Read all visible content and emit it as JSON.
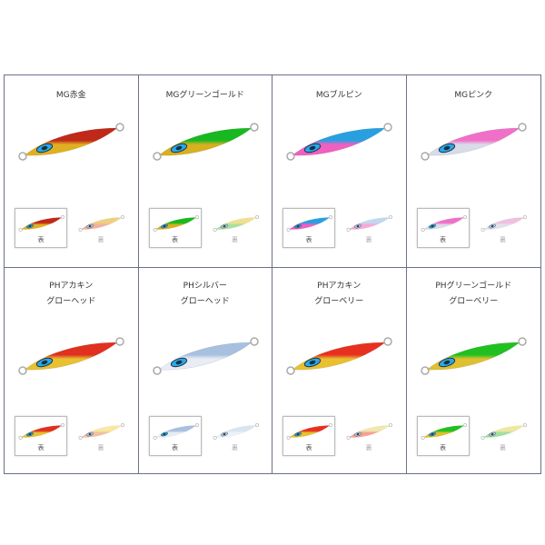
{
  "products": [
    {
      "title": [
        "MG赤金"
      ],
      "top": "#c0281a",
      "body": "#e0b020",
      "back_top": "#f0d080",
      "back_body": "#f0b0a0",
      "thumbs": [
        "表",
        "裏"
      ]
    },
    {
      "title": [
        "MGグリーンゴールド"
      ],
      "top": "#18b820",
      "body": "#d8b020",
      "back_top": "#f0e090",
      "back_body": "#a8e0a0",
      "thumbs": [
        "表",
        "裏"
      ]
    },
    {
      "title": [
        "MGブルピン"
      ],
      "top": "#28a0e0",
      "body": "#f060c0",
      "back_top": "#c0d8f0",
      "back_body": "#f8a8d8",
      "thumbs": [
        "表",
        "裏"
      ]
    },
    {
      "title": [
        "MGピンク"
      ],
      "top": "#f070c8",
      "body": "#d8dce8",
      "back_top": "#f0c0e0",
      "back_body": "#e0e4ec",
      "thumbs": [
        "表",
        "裏"
      ]
    },
    {
      "title": [
        "PHアカキン",
        "グローヘッド"
      ],
      "top": "#e03020",
      "body": "#e8c030",
      "back_top": "#f8e8a0",
      "back_body": "#f0c0a0",
      "thumbs": [
        "表",
        "裏"
      ]
    },
    {
      "title": [
        "PHシルバー",
        "グローヘッド"
      ],
      "top": "#a8c0e0",
      "body": "#e8ecf4",
      "back_top": "#d8e4f0",
      "back_body": "#eef2f8",
      "thumbs": [
        "表",
        "裏"
      ]
    },
    {
      "title": [
        "PHアカキン",
        "グローベリー"
      ],
      "top": "#e83020",
      "body": "#e8c030",
      "back_top": "#f0e8b0",
      "back_body": "#f8a090",
      "thumbs": [
        "表",
        "裏"
      ]
    },
    {
      "title": [
        "PHグリーンゴールド",
        "グローベリー"
      ],
      "top": "#20c020",
      "body": "#e0c030",
      "back_top": "#f0e8a0",
      "back_body": "#a0e0a0",
      "thumbs": [
        "表",
        "裏"
      ]
    }
  ],
  "selected_thumb": 0,
  "colors": {
    "border": "#6b7088",
    "eye": "#2aa8e8"
  }
}
